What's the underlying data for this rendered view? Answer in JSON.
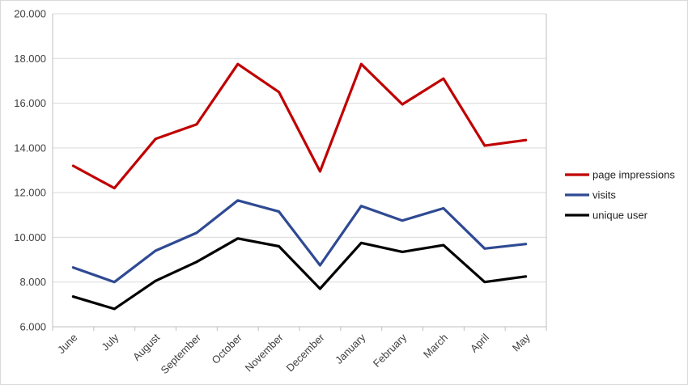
{
  "chart_data": {
    "type": "line",
    "categories": [
      "June",
      "July",
      "August",
      "September",
      "October",
      "November",
      "December",
      "January",
      "February",
      "March",
      "April",
      "May"
    ],
    "ylim": [
      6000,
      20000
    ],
    "yticks": [
      6000,
      8000,
      10000,
      12000,
      14000,
      16000,
      18000,
      20000
    ],
    "ytick_labels": [
      "6.000",
      "8.000",
      "10.000",
      "12.000",
      "14.000",
      "16.000",
      "18.000",
      "20.000"
    ],
    "grid": true,
    "legend_position": "right",
    "series": [
      {
        "name": "page impressions",
        "color": "#c00000",
        "values": [
          13200,
          12200,
          14400,
          15050,
          17750,
          16500,
          12950,
          17750,
          15950,
          17100,
          14100,
          14350
        ]
      },
      {
        "name": "visits",
        "color": "#2f4a93",
        "values": [
          8650,
          8000,
          9400,
          10200,
          11650,
          11150,
          8750,
          11400,
          10750,
          11300,
          9500,
          9700
        ]
      },
      {
        "name": "unique user",
        "color": "#000000",
        "values": [
          7350,
          6800,
          8050,
          8900,
          9950,
          9600,
          7700,
          9750,
          9350,
          9650,
          8000,
          8250
        ]
      }
    ]
  }
}
